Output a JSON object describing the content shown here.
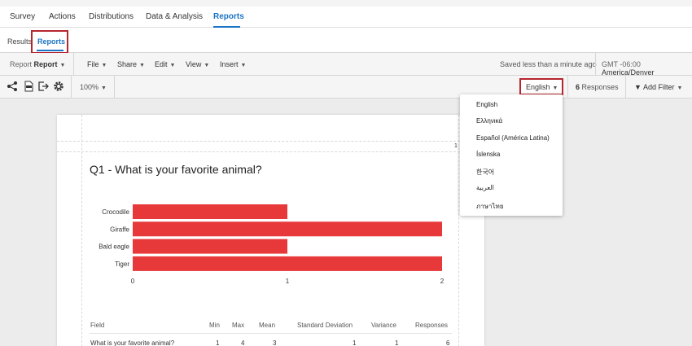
{
  "topnav": {
    "tabs": [
      {
        "label": "Survey",
        "x": 12
      },
      {
        "label": "Actions",
        "x": 60
      },
      {
        "label": "Distributions",
        "x": 109
      },
      {
        "label": "Data & Analysis",
        "x": 179
      },
      {
        "label": "Reports",
        "x": 262,
        "active": true
      }
    ]
  },
  "subtabs": {
    "results": "Results",
    "reports": "Reports"
  },
  "menubar": {
    "report_prefix": "Report",
    "report_name": "Report",
    "file": "File",
    "share": "Share",
    "edit": "Edit",
    "view": "View",
    "insert": "Insert",
    "saved_status": "Saved less than a minute ago",
    "timezone_label": "GMT -06:00",
    "timezone_name": "America/Denver"
  },
  "toolbar": {
    "zoom": "100%",
    "language": "English",
    "responses_count": "6",
    "responses_label": "Responses",
    "add_filter": "Add Filter"
  },
  "language_menu": {
    "options": [
      "English",
      "Ελληνικά",
      "Español (América Latina)",
      "Íslenska",
      "한국어",
      "العربية",
      "ภาษาไทย"
    ]
  },
  "report_page": {
    "page_number": "1",
    "question_title": "Q1 - What is your favorite animal?"
  },
  "chart_data": {
    "type": "bar",
    "orientation": "horizontal",
    "categories": [
      "Crocodile",
      "Giraffe",
      "Bald eagle",
      "Tiger"
    ],
    "values": [
      1,
      2,
      1,
      2
    ],
    "xlim": [
      0,
      2
    ],
    "xticks": [
      "0",
      "1",
      "2"
    ],
    "bar_color": "#e8393a"
  },
  "stats_table": {
    "headers": [
      "Field",
      "Min",
      "Max",
      "Mean",
      "Standard Deviation",
      "Variance",
      "Responses"
    ],
    "rows": [
      [
        "What is your favorite animal?",
        "1",
        "4",
        "3",
        "1",
        "1",
        "6"
      ]
    ]
  },
  "colors": {
    "accent": "#1a73c4",
    "highlight": "#b5262e"
  }
}
